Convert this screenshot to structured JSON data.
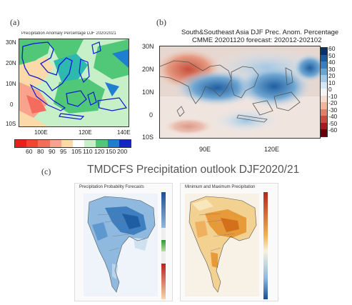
{
  "panel_a": {
    "label": "(a)",
    "title": "Precipitation Anomaly Percentage DJF 2020/2021",
    "lat_labels": [
      "30N",
      "20N",
      "10N",
      "0",
      "10S"
    ],
    "lon_labels": [
      "100E",
      "120E",
      "140E"
    ],
    "colorbar_labels": [
      "60",
      "80",
      "90",
      "95",
      "105",
      "110",
      "120",
      "150",
      "200"
    ],
    "colors": [
      "#e8201f",
      "#f46c5e",
      "#f9a38c",
      "#fcd9a8",
      "#ffffff",
      "#c8f0c8",
      "#50c878",
      "#1e7fd0",
      "#1426c8"
    ]
  },
  "panel_b": {
    "label": "(b)",
    "title_line1": "South&Southeast Asia DJF Prec. Anom. Percentage",
    "title_line2": "CMME 20201120 forecast: 202012-202102",
    "lat_labels": [
      "30N",
      "20N",
      "10N",
      "0",
      "10S"
    ],
    "lon_labels": [
      "90E",
      "120E"
    ],
    "colorbar_labels": [
      "60",
      "50",
      "40",
      "30",
      "20",
      "10",
      "0",
      "-10",
      "-20",
      "-30",
      "-40",
      "-50",
      "-60"
    ]
  },
  "panel_c": {
    "label": "(c)",
    "title": "TMDCFS Precipitation outlook DJF2020/21",
    "left_map_title": "Precipitation Probability Forecasts",
    "right_map_title": "Minimum and Maximum Precipitation"
  }
}
